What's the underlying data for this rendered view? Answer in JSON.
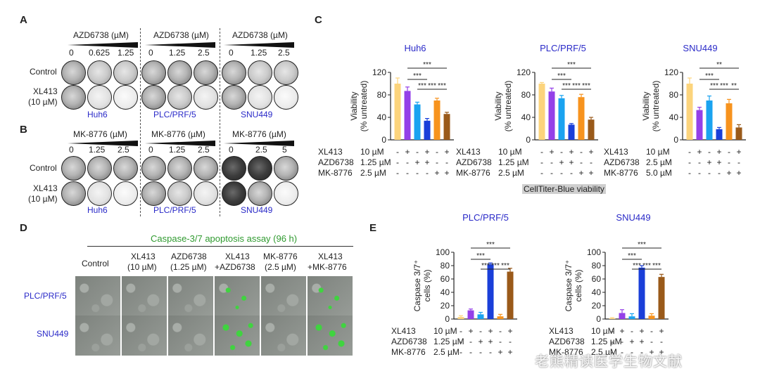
{
  "panel_letters": {
    "a": "A",
    "b": "B",
    "c": "C",
    "d": "D",
    "e": "E"
  },
  "panelA": {
    "headers": [
      "AZD6738 (µM)",
      "AZD6738 (µM)",
      "AZD6738 (µM)"
    ],
    "doses": [
      [
        "0",
        "0.625",
        "1.25"
      ],
      [
        "0",
        "1.25",
        "2.5"
      ],
      [
        "0",
        "1.25",
        "2.5"
      ]
    ],
    "rows": [
      "Control",
      "XL413",
      "(10 µM)"
    ],
    "cells": [
      "Huh6",
      "PLC/PRF/5",
      "SNU449"
    ]
  },
  "panelB": {
    "headers": [
      "MK-8776 (µM)",
      "MK-8776 (µM)",
      "MK-8776 (µM)"
    ],
    "doses": [
      [
        "0",
        "1.25",
        "2.5"
      ],
      [
        "0",
        "1.25",
        "2.5"
      ],
      [
        "0",
        "2.5",
        "5"
      ]
    ],
    "rows": [
      "Control",
      "XL413",
      "(10 µM)"
    ],
    "cells": [
      "Huh6",
      "PLC/PRF/5",
      "SNU449"
    ]
  },
  "panelC": {
    "footer": "CellTiter-Blue viability",
    "colors": [
      "#fcd47c",
      "#9440e8",
      "#1aa3f0",
      "#1a3fd9",
      "#f7931e",
      "#9a5a1a"
    ]
  },
  "panelD": {
    "title": "Caspase-3/7 apoptosis assay (96 h)",
    "columns": [
      [
        "Control"
      ],
      [
        "XL413",
        "(10 µM)"
      ],
      [
        "AZD6738",
        "(1.25 µM)"
      ],
      [
        "XL413",
        "+AZD6738"
      ],
      [
        "MK-8776",
        "(2.5 µM)"
      ],
      [
        "XL413",
        "+MK-8776"
      ]
    ],
    "rows": [
      "PLC/PRF/5",
      "SNU449"
    ]
  },
  "chart_data": [
    {
      "type": "bar",
      "title": "Huh6",
      "ylabel": "Viability (% untreated)",
      "ylim": [
        0,
        120
      ],
      "yticks": [
        0,
        40,
        80,
        120
      ],
      "categories": [
        "1",
        "2",
        "3",
        "4",
        "5",
        "6"
      ],
      "values": [
        100,
        87,
        63,
        34,
        70,
        46
      ],
      "errors": [
        10,
        7,
        4,
        4,
        4,
        3
      ],
      "significance": [
        {
          "from": 1,
          "to": 3,
          "label": "***"
        },
        {
          "from": 2,
          "to": 3,
          "label": "***"
        },
        {
          "from": 3,
          "to": 4,
          "label": "***"
        },
        {
          "from": 1,
          "to": 5,
          "label": "***"
        },
        {
          "from": 4,
          "to": 5,
          "label": "***"
        }
      ],
      "conditions": [
        {
          "label": "XL413",
          "conc": "10 µM",
          "signs": [
            "-",
            "+",
            "-",
            "+",
            "-",
            "+"
          ]
        },
        {
          "label": "AZD6738",
          "conc": "1.25 µM",
          "signs": [
            "-",
            "-",
            "+",
            "+",
            "-",
            "-"
          ]
        },
        {
          "label": "MK-8776",
          "conc": "2.5 µM",
          "signs": [
            "-",
            "-",
            "-",
            "-",
            "+",
            "+"
          ]
        }
      ]
    },
    {
      "type": "bar",
      "title": "PLC/PRF/5",
      "ylabel": "Viability (% untreated)",
      "ylim": [
        0,
        120
      ],
      "yticks": [
        0,
        40,
        80,
        120
      ],
      "categories": [
        "1",
        "2",
        "3",
        "4",
        "5",
        "6"
      ],
      "values": [
        100,
        86,
        74,
        27,
        76,
        36
      ],
      "errors": [
        2,
        6,
        5,
        2,
        5,
        4
      ],
      "significance": [
        {
          "from": 1,
          "to": 3,
          "label": "***"
        },
        {
          "from": 2,
          "to": 3,
          "label": "***"
        },
        {
          "from": 3,
          "to": 4,
          "label": "***"
        },
        {
          "from": 1,
          "to": 5,
          "label": "***"
        },
        {
          "from": 4,
          "to": 5,
          "label": "***"
        }
      ],
      "conditions": [
        {
          "label": "XL413",
          "conc": "10 µM",
          "signs": [
            "-",
            "+",
            "-",
            "+",
            "-",
            "+"
          ]
        },
        {
          "label": "AZD6738",
          "conc": "1.25 µM",
          "signs": [
            "-",
            "-",
            "+",
            "+",
            "-",
            "-"
          ]
        },
        {
          "label": "MK-8776",
          "conc": "2.5 µM",
          "signs": [
            "-",
            "-",
            "-",
            "-",
            "+",
            "+"
          ]
        }
      ]
    },
    {
      "type": "bar",
      "title": "SNU449",
      "ylabel": "Viability (% untreated)",
      "ylim": [
        0,
        120
      ],
      "yticks": [
        0,
        40,
        80,
        120
      ],
      "categories": [
        "1",
        "2",
        "3",
        "4",
        "5",
        "6"
      ],
      "values": [
        100,
        53,
        70,
        19,
        65,
        22
      ],
      "errors": [
        10,
        5,
        8,
        3,
        7,
        5
      ],
      "significance": [
        {
          "from": 1,
          "to": 3,
          "label": "***"
        },
        {
          "from": 2,
          "to": 3,
          "label": "***"
        },
        {
          "from": 3,
          "to": 4,
          "label": "***"
        },
        {
          "from": 1,
          "to": 5,
          "label": "**"
        },
        {
          "from": 4,
          "to": 5,
          "label": "**"
        }
      ],
      "conditions": [
        {
          "label": "XL413",
          "conc": "10 µM",
          "signs": [
            "-",
            "+",
            "-",
            "+",
            "-",
            "+"
          ]
        },
        {
          "label": "AZD6738",
          "conc": "2.5 µM",
          "signs": [
            "-",
            "-",
            "+",
            "+",
            "-",
            "-"
          ]
        },
        {
          "label": "MK-8776",
          "conc": "5.0 µM",
          "signs": [
            "-",
            "-",
            "-",
            "-",
            "+",
            "+"
          ]
        }
      ]
    },
    {
      "type": "bar",
      "title": "PLC/PRF/5",
      "ylabel": "Caspase 3/7⁺ cells (%)",
      "ylim": [
        0,
        100
      ],
      "yticks": [
        0,
        20,
        40,
        60,
        80,
        100
      ],
      "categories": [
        "1",
        "2",
        "3",
        "4",
        "5",
        "6"
      ],
      "values": [
        3,
        13,
        7,
        82,
        4,
        71
      ],
      "errors": [
        2,
        2,
        3,
        2,
        3,
        5
      ],
      "significance": [
        {
          "from": 1,
          "to": 3,
          "label": "***"
        },
        {
          "from": 2,
          "to": 3,
          "label": "***"
        },
        {
          "from": 3,
          "to": 4,
          "label": "***"
        },
        {
          "from": 1,
          "to": 5,
          "label": "***"
        },
        {
          "from": 4,
          "to": 5,
          "label": "***"
        }
      ],
      "conditions": [
        {
          "label": "XL413",
          "conc": "10 µM",
          "signs": [
            "-",
            "+",
            "-",
            "+",
            "-",
            "+"
          ]
        },
        {
          "label": "AZD6738",
          "conc": "1.25 µM",
          "signs": [
            "-",
            "-",
            "+",
            "+",
            "-",
            "-"
          ]
        },
        {
          "label": "MK-8776",
          "conc": "2.5 µM",
          "signs": [
            "-",
            "-",
            "-",
            "-",
            "+",
            "+"
          ]
        }
      ]
    },
    {
      "type": "bar",
      "title": "SNU449",
      "ylabel": "Caspase 3/7⁺ cells (%)",
      "ylim": [
        0,
        100
      ],
      "yticks": [
        0,
        20,
        40,
        60,
        80,
        100
      ],
      "categories": [
        "1",
        "2",
        "3",
        "4",
        "5",
        "6"
      ],
      "values": [
        1,
        9,
        4,
        77,
        5,
        63
      ],
      "errors": [
        1,
        5,
        4,
        3,
        3,
        4
      ],
      "significance": [
        {
          "from": 1,
          "to": 3,
          "label": "***"
        },
        {
          "from": 2,
          "to": 3,
          "label": "***"
        },
        {
          "from": 3,
          "to": 4,
          "label": "***"
        },
        {
          "from": 1,
          "to": 5,
          "label": "***"
        },
        {
          "from": 4,
          "to": 5,
          "label": "***"
        }
      ],
      "conditions": [
        {
          "label": "XL413",
          "conc": "10 µM",
          "signs": [
            "-",
            "+",
            "-",
            "+",
            "-",
            "+"
          ]
        },
        {
          "label": "AZD6738",
          "conc": "1.25 µM",
          "signs": [
            "-",
            "-",
            "+",
            "+",
            "-",
            "-"
          ]
        },
        {
          "label": "MK-8776",
          "conc": "2.5 µM",
          "signs": [
            "-",
            "-",
            "-",
            "-",
            "+",
            "+"
          ]
        }
      ]
    }
  ],
  "watermark": "老熊精读医学生物文献"
}
